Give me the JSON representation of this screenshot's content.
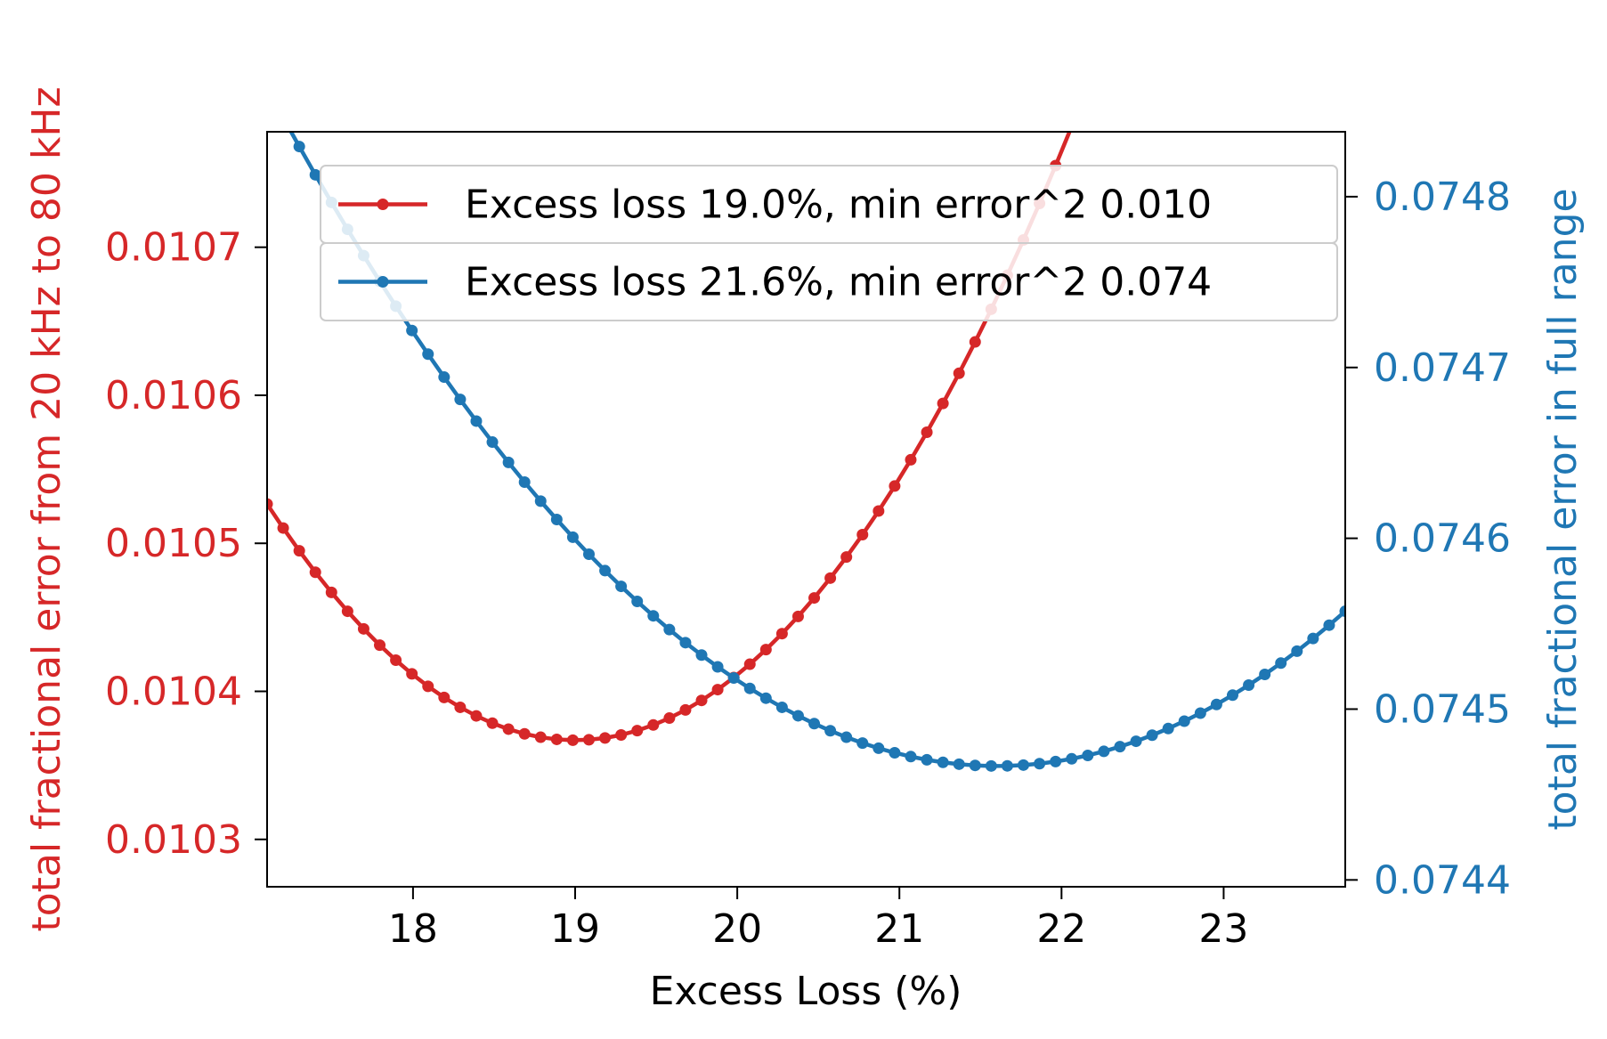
{
  "chart_data": {
    "type": "line",
    "title": "",
    "xlabel": "Excess Loss (%)",
    "ylabel_left": "total fractional error from 20 kHz to 80 kHz",
    "ylabel_right": "total fractional error in full range",
    "xlim": [
      17.1,
      23.75
    ],
    "ylim_left": [
      0.010268,
      0.010778
    ],
    "ylim_right": [
      0.074396,
      0.074838
    ],
    "x_ticks": [
      18,
      19,
      20,
      21,
      22,
      23
    ],
    "x_tick_labels": [
      "18",
      "19",
      "20",
      "21",
      "22",
      "23"
    ],
    "y_ticks_left": [
      0.0103,
      0.0104,
      0.0105,
      0.0106,
      0.0107
    ],
    "y_tick_labels_left": [
      "0.0103",
      "0.0104",
      "0.0105",
      "0.0106",
      "0.0107"
    ],
    "y_ticks_right": [
      0.0744,
      0.0745,
      0.0746,
      0.0747,
      0.0748
    ],
    "y_tick_labels_right": [
      "0.0744",
      "0.0745",
      "0.0746",
      "0.0747",
      "0.0748"
    ],
    "grid": false,
    "legend_position": "top-right",
    "x_range": {
      "start": 17.1,
      "end": 23.75,
      "points": 68
    },
    "series": [
      {
        "name": "Excess loss 19.0%, min error^2 0.010",
        "axis": "left",
        "color": "#d62728",
        "model": {
          "type": "quadratic",
          "vertex_x": 19.0,
          "min_y": 0.010367,
          "curvature": 4.42e-05
        }
      },
      {
        "name": "Excess loss 21.6%, min error^2 0.074",
        "axis": "right",
        "color": "#1f77b4",
        "model": {
          "type": "quadratic",
          "vertex_x": 21.6,
          "min_y": 0.0744667,
          "curvature": 1.96e-05
        }
      }
    ],
    "left_axis_color": "#d62728",
    "right_axis_color": "#1f77b4"
  }
}
